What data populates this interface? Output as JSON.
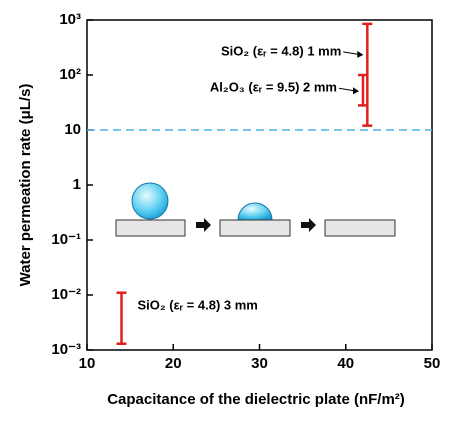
{
  "chart_data": {
    "type": "range",
    "xlabel": "Capacitance of the dielectric plate (nF/m²)",
    "ylabel": "Water permeation rate (μL/s)",
    "xlim": [
      10,
      50
    ],
    "xticks": [
      10,
      20,
      30,
      40,
      50
    ],
    "ylim": [
      0.001,
      1000
    ],
    "yscale": "log",
    "yticks": [
      {
        "value": 1000,
        "label": "10³"
      },
      {
        "value": 100,
        "label": "10²"
      },
      10,
      1,
      {
        "value": 0.1,
        "label": "10⁻¹"
      },
      {
        "value": 0.01,
        "label": "10⁻²"
      },
      {
        "value": 0.001,
        "label": "10⁻³"
      }
    ],
    "reference_line": {
      "y": 10,
      "color": "#4fb0e6"
    },
    "series": [
      {
        "name": "SiO₂ (εᵣ = 4.8) 1 mm",
        "color": "#e0201e",
        "x": [
          42.5
        ],
        "low": [
          12
        ],
        "high": [
          850
        ]
      },
      {
        "name": "Al₂O₃ (εᵣ = 9.5) 2 mm",
        "color": "#e0201e",
        "x": [
          42
        ],
        "low": [
          28
        ],
        "high": [
          100
        ]
      },
      {
        "name": "SiO₂ (εᵣ = 4.8) 3 mm",
        "color": "#e0201e",
        "x": [
          14
        ],
        "low": [
          0.0013
        ],
        "high": [
          0.011
        ]
      }
    ]
  }
}
